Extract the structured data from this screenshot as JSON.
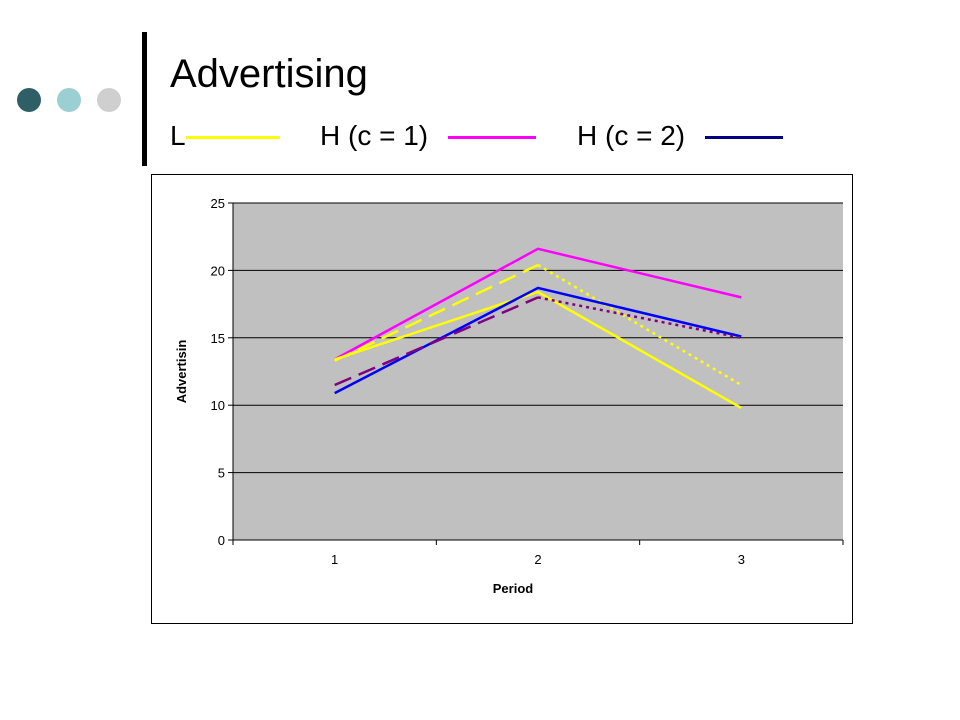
{
  "slide": {
    "title": "Advertising",
    "decor_dot_colors": [
      "#2f5f66",
      "#9ccfd4",
      "#cfcfcf"
    ]
  },
  "legend": [
    {
      "label": "L",
      "color": "#ffff00"
    },
    {
      "label": "H (c = 1)",
      "color": "#ff00ff"
    },
    {
      "label": "H (c = 2)",
      "color": "#000080"
    }
  ],
  "chart_data": {
    "type": "line",
    "title": "",
    "xlabel": "Period",
    "ylabel": "Advertisin",
    "x": [
      1,
      2,
      3
    ],
    "ylim": [
      0,
      25
    ],
    "yticks": [
      0,
      5,
      10,
      15,
      20,
      25
    ],
    "grid": true,
    "plot_background": "#c0c0c0",
    "series": [
      {
        "color": "#ff00ff",
        "style": "solid",
        "values": [
          13.4,
          21.6,
          18.0
        ]
      },
      {
        "color": "#ffff00",
        "style": "dashed",
        "values": [
          13.3,
          20.4,
          null
        ]
      },
      {
        "color": "#ffff00",
        "style": "dotted",
        "values": [
          null,
          20.4,
          11.5
        ]
      },
      {
        "color": "#ffff00",
        "style": "solid",
        "values": [
          13.4,
          18.4,
          9.8
        ]
      },
      {
        "color": "#0000ff",
        "style": "solid",
        "values": [
          10.9,
          18.7,
          15.1
        ]
      },
      {
        "color": "#800080",
        "style": "dashed",
        "values": [
          11.5,
          18.0,
          null
        ]
      },
      {
        "color": "#800080",
        "style": "dotted",
        "values": [
          null,
          18.0,
          15.0
        ]
      }
    ]
  }
}
